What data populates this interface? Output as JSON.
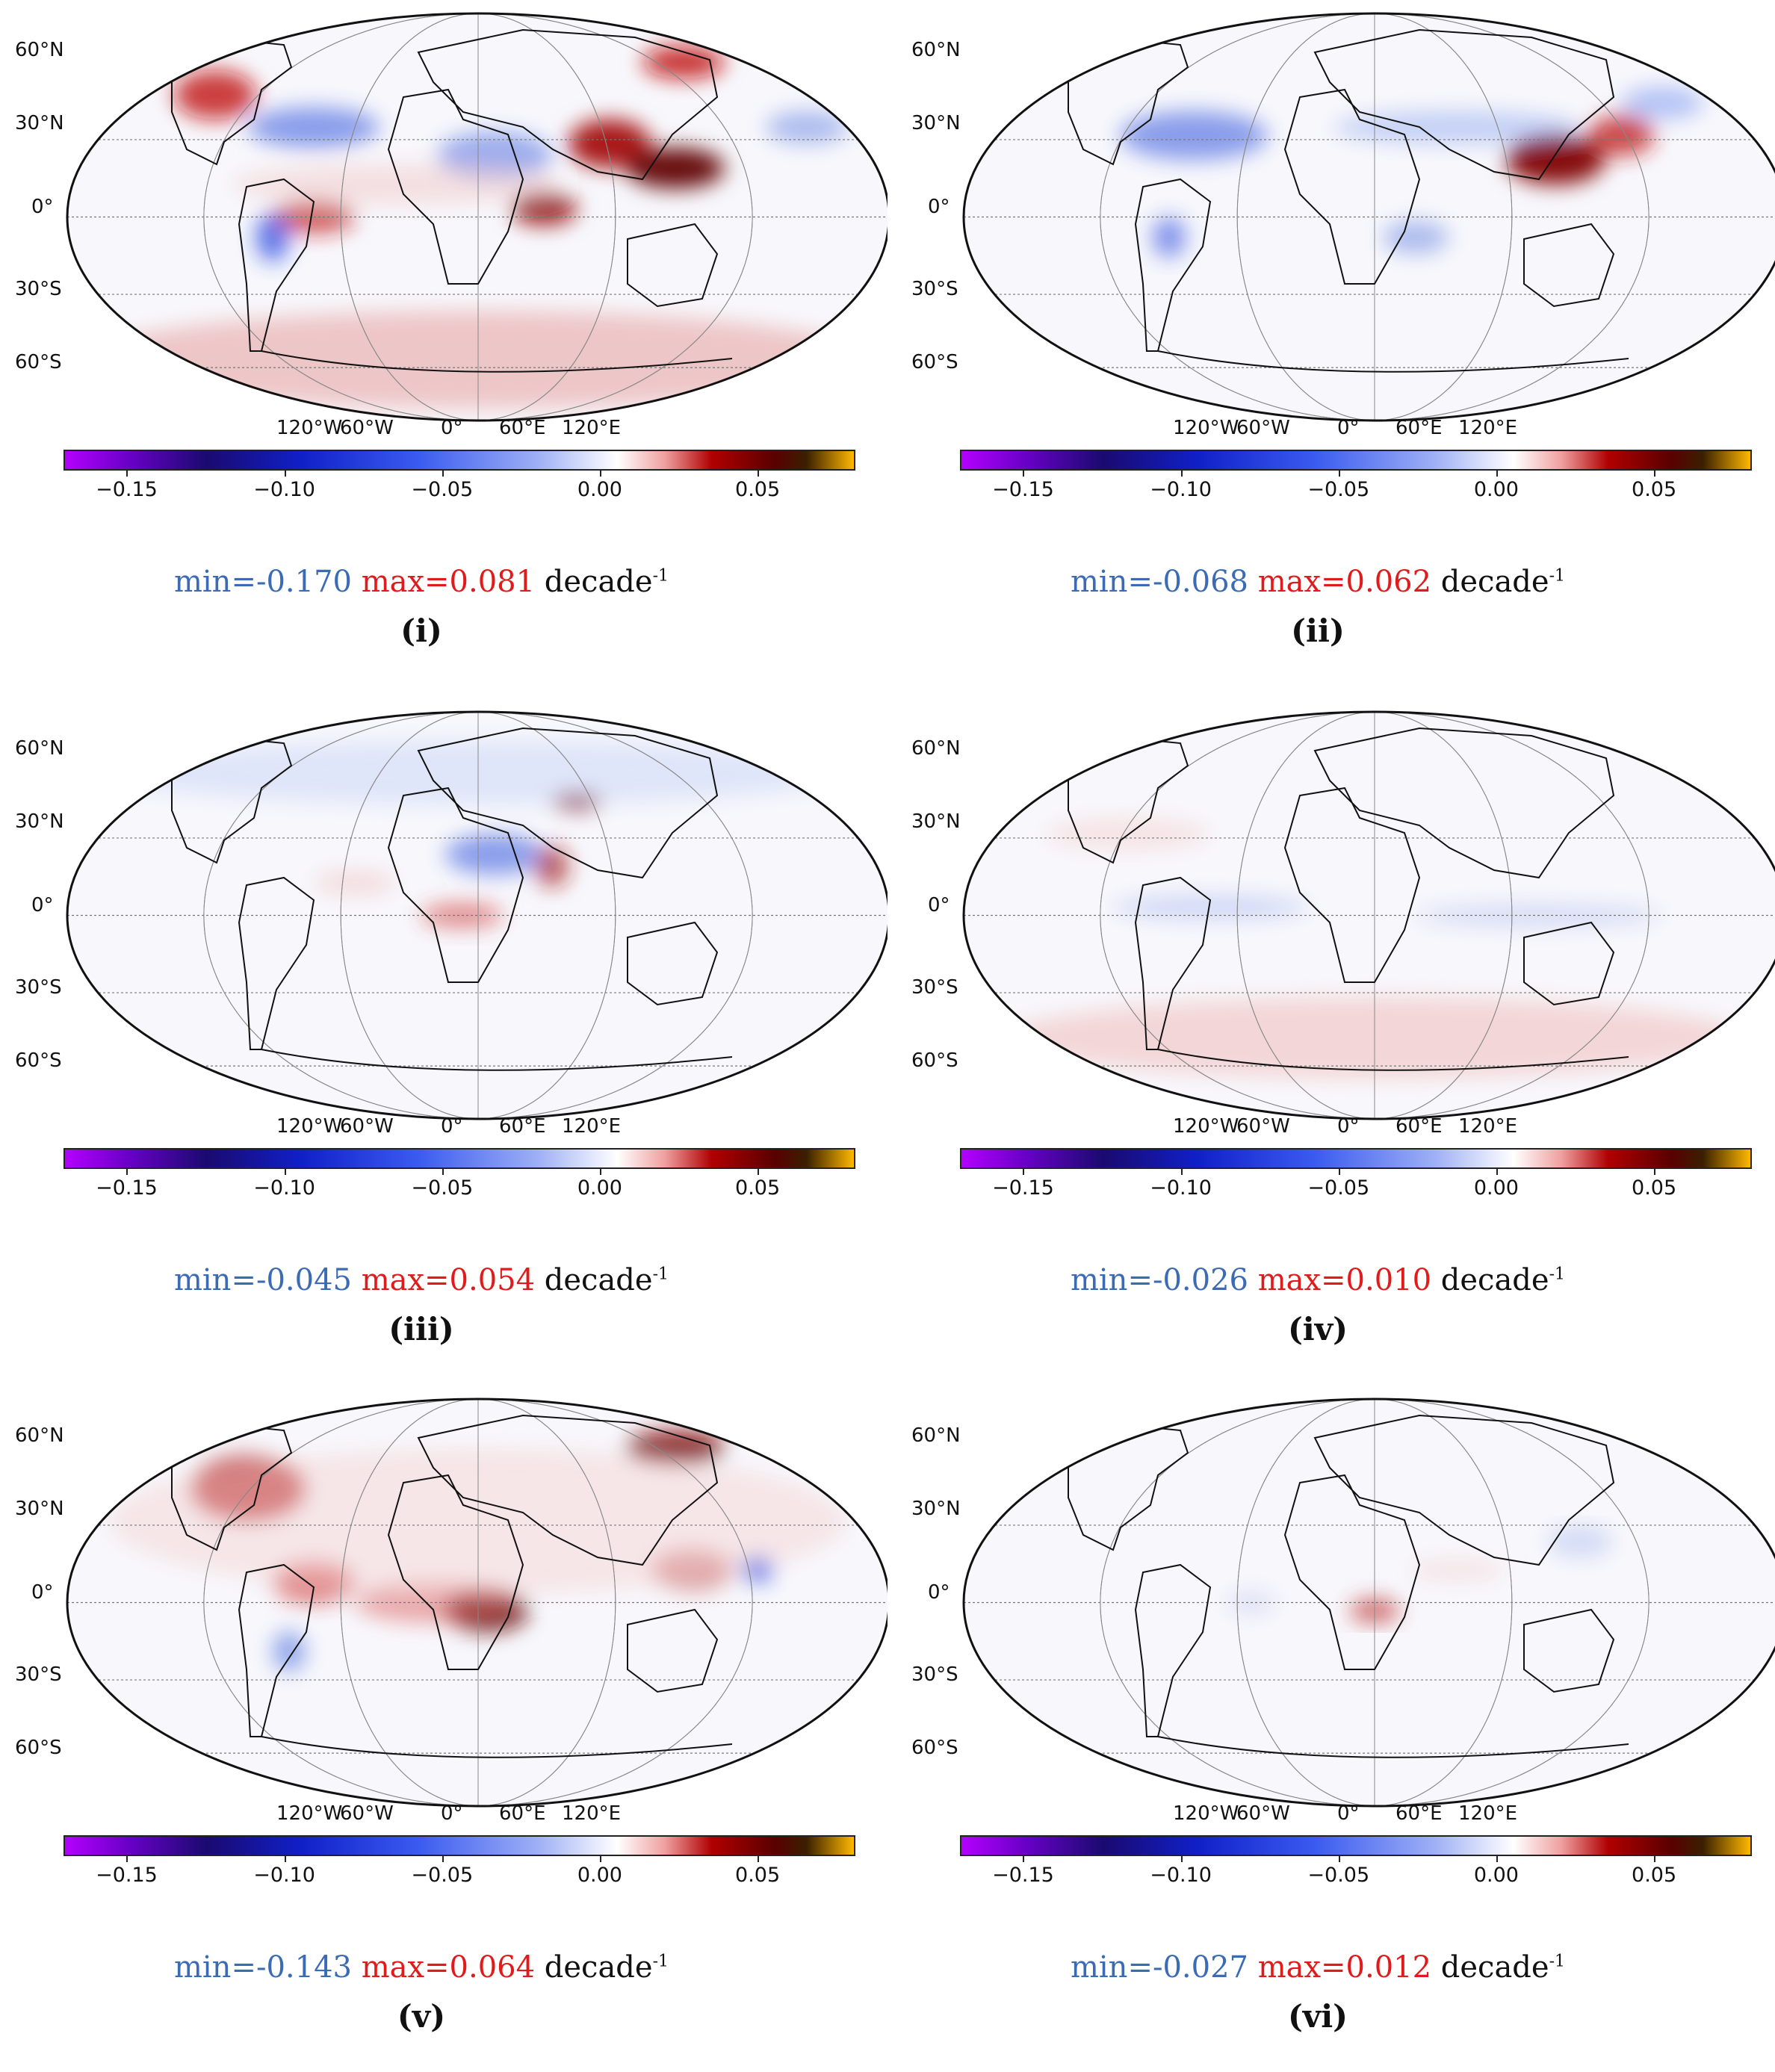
{
  "colorbar": {
    "ticks": [
      "−0.15",
      "−0.10",
      "−0.05",
      "0.00",
      "0.05"
    ],
    "tick_values": [
      -0.15,
      -0.1,
      -0.05,
      0.0,
      0.05
    ],
    "range": [
      -0.17,
      0.081
    ],
    "colors": [
      "#b400ff",
      "#1a0a70",
      "#1020c8",
      "#9fb0f5",
      "#ffffff",
      "#b00000",
      "#5a0000",
      "#ffb800"
    ]
  },
  "axes": {
    "lat_labels": [
      "60°N",
      "30°N",
      "0°",
      "30°S",
      "60°S"
    ],
    "lon_labels": [
      "120°W",
      "60°W",
      "0°",
      "60°E",
      "120°E"
    ]
  },
  "panels": [
    {
      "id": "i",
      "label": "(i)",
      "min_label": "min=-0.170",
      "max_label": "max=0.081",
      "unit": "decade",
      "unit_exp": "-1",
      "min": -0.17,
      "max": 0.081
    },
    {
      "id": "ii",
      "label": "(ii)",
      "min_label": "min=-0.068",
      "max_label": "max=0.062",
      "unit": "decade",
      "unit_exp": "-1",
      "min": -0.068,
      "max": 0.062
    },
    {
      "id": "iii",
      "label": "(iii)",
      "min_label": "min=-0.045",
      "max_label": "max=0.054",
      "unit": "decade",
      "unit_exp": "-1",
      "min": -0.045,
      "max": 0.054
    },
    {
      "id": "iv",
      "label": "(iv)",
      "min_label": "min=-0.026",
      "max_label": "max=0.010",
      "unit": "decade",
      "unit_exp": "-1",
      "min": -0.026,
      "max": 0.01
    },
    {
      "id": "v",
      "label": "(v)",
      "min_label": "min=-0.143",
      "max_label": "max=0.064",
      "unit": "decade",
      "unit_exp": "-1",
      "min": -0.143,
      "max": 0.064
    },
    {
      "id": "vi",
      "label": "(vi)",
      "min_label": "min=-0.027",
      "max_label": "max=0.012",
      "unit": "decade",
      "unit_exp": "-1",
      "min": -0.027,
      "max": 0.012
    }
  ]
}
